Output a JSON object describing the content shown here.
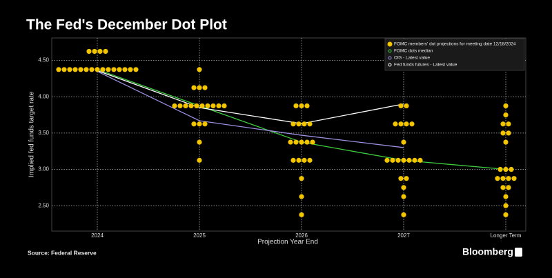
{
  "chart_data": {
    "type": "dot_plot",
    "title": "The Fed's December Dot Plot",
    "x_label": "Projection Year End",
    "y_label": "Implied fed funds target rate",
    "source": "Source: Federal Reserve",
    "brand": "Bloomberg",
    "categories": [
      "2024",
      "2025",
      "2026",
      "2027",
      "Longer Term"
    ],
    "ylim": [
      2.15,
      4.81
    ],
    "yticks": [
      {
        "value": 2.5,
        "label": "2.50"
      },
      {
        "value": 3,
        "label": "3.00"
      },
      {
        "value": 3.5,
        "label": "3.50"
      },
      {
        "value": 4,
        "label": "4.00"
      },
      {
        "value": 4.5,
        "label": "4.50"
      }
    ],
    "grid": true,
    "legend": "top-right",
    "series": [
      {
        "name": "FOMC members' dot projections for meeting date 12/18/2024",
        "type": "dots",
        "color": "#f2c500",
        "values": [
          [
            4.625,
            4.625,
            4.625,
            4.625,
            4.375,
            4.375,
            4.375,
            4.375,
            4.375,
            4.375,
            4.375,
            4.375,
            4.375,
            4.375,
            4.375,
            4.375,
            4.375,
            4.375,
            4.375
          ],
          [
            4.375,
            4.125,
            4.125,
            4.125,
            3.875,
            3.875,
            3.875,
            3.875,
            3.875,
            3.875,
            3.875,
            3.875,
            3.875,
            3.875,
            3.625,
            3.625,
            3.625,
            3.375,
            3.125
          ],
          [
            3.875,
            3.875,
            3.875,
            3.625,
            3.625,
            3.625,
            3.625,
            3.375,
            3.375,
            3.375,
            3.375,
            3.375,
            3.125,
            3.125,
            3.125,
            3.125,
            2.875,
            2.625,
            2.375
          ],
          [
            3.875,
            3.875,
            3.625,
            3.625,
            3.625,
            3.625,
            3.375,
            3.125,
            3.125,
            3.125,
            3.125,
            3.125,
            3.125,
            3.125,
            2.875,
            2.875,
            2.75,
            2.625,
            2.375
          ],
          [
            3.875,
            3.75,
            3.625,
            3.625,
            3.5,
            3.5,
            3.375,
            3,
            3,
            3,
            2.875,
            2.875,
            2.875,
            2.875,
            2.75,
            2.75,
            2.625,
            2.5,
            2.375
          ]
        ]
      },
      {
        "name": "FOMC dots median",
        "type": "line",
        "color": "#3fcf3f",
        "values": [
          4.375,
          3.875,
          3.375,
          3.125,
          3.0
        ]
      },
      {
        "name": "OIS - Latest value",
        "type": "line",
        "color": "#9b8fe0",
        "values": [
          4.35,
          3.67,
          3.47,
          3.3,
          null
        ]
      },
      {
        "name": "Fed funds futures - Latest value",
        "type": "line",
        "color": "#ffffff",
        "values": [
          4.36,
          3.85,
          3.63,
          3.9,
          null
        ]
      }
    ]
  }
}
